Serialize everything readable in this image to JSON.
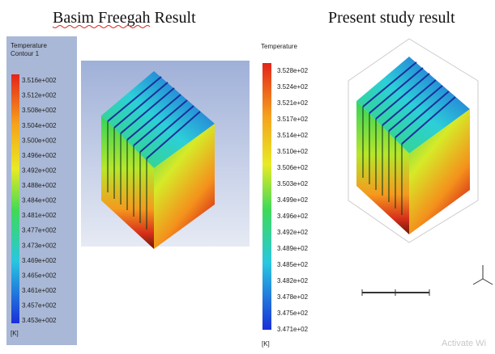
{
  "header": {
    "left_title": "Basim Freegah Result",
    "right_title": "Present study result"
  },
  "left_legend": {
    "title": "Temperature",
    "subtitle": "Contour 1",
    "labels": [
      "3.516e+002",
      "3.512e+002",
      "3.508e+002",
      "3.504e+002",
      "3.500e+002",
      "3.496e+002",
      "3.492e+002",
      "3.488e+002",
      "3.484e+002",
      "3.481e+002",
      "3.477e+002",
      "3.473e+002",
      "3.469e+002",
      "3.465e+002",
      "3.461e+002",
      "3.457e+002",
      "3.453e+002"
    ],
    "unit": "[K]"
  },
  "right_legend": {
    "title": "Temperature",
    "labels": [
      "3.528e+02",
      "3.524e+02",
      "3.521e+02",
      "3.517e+02",
      "3.514e+02",
      "3.510e+02",
      "3.506e+02",
      "3.503e+02",
      "3.499e+02",
      "3.496e+02",
      "3.492e+02",
      "3.489e+02",
      "3.485e+02",
      "3.482e+02",
      "3.478e+02",
      "3.475e+02",
      "3.471e+02"
    ],
    "unit": "[K]"
  },
  "watermark": "Activate Wi"
}
